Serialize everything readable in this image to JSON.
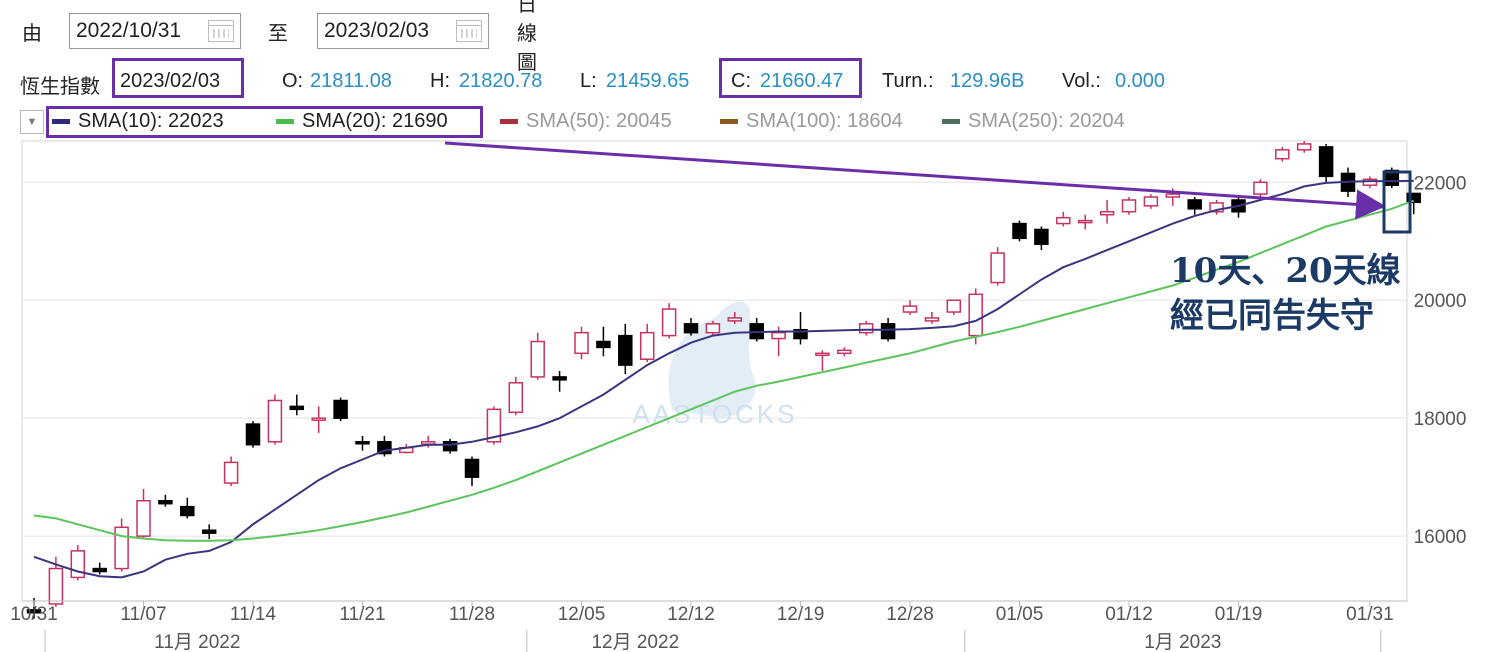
{
  "controls": {
    "from_label": "由",
    "from_date": "2022/10/31",
    "to_label": "至",
    "to_date": "2023/02/03",
    "chart_type": "日線圖"
  },
  "quote": {
    "index_name": "恆生指數",
    "date": "2023/02/03",
    "open_label": "O:",
    "open": "21811.08",
    "high_label": "H:",
    "high": "21820.78",
    "low_label": "L:",
    "low": "21459.65",
    "close_label": "C:",
    "close": "21660.47",
    "turnover_label": "Turn.:",
    "turnover": "129.96B",
    "volume_label": "Vol.:",
    "volume": "0.000"
  },
  "legend": [
    {
      "label": "SMA(10): 22023",
      "color": "#2e2a7a",
      "active": true
    },
    {
      "label": "SMA(20): 21690",
      "color": "#4cbb4c",
      "active": true
    },
    {
      "label": "SMA(50): 20045",
      "color": "#a8323c",
      "active": false
    },
    {
      "label": "SMA(100): 18604",
      "color": "#8a5a1c",
      "active": false
    },
    {
      "label": "SMA(250): 20204",
      "color": "#4a6f5c",
      "active": false
    }
  ],
  "watermark": "AASTOCKS",
  "annotation": {
    "line1": "10天、20天線",
    "line2": "經已同告失守"
  },
  "colors": {
    "up": "#c8325f",
    "down": "#000000",
    "sma10": "#3b3580",
    "sma20": "#5cc45c",
    "arrow": "#6a2ea8"
  },
  "chart_data": {
    "type": "candlestick",
    "ylim": [
      14900,
      22700
    ],
    "yticks": [
      16000,
      18000,
      20000,
      22000
    ],
    "ytick_labels": [
      "16000",
      "18000",
      "20000",
      "22000"
    ],
    "xtick_labels": [
      "10/31",
      "11/07",
      "11/14",
      "11/21",
      "11/28",
      "12/05",
      "12/12",
      "12/19",
      "12/28",
      "01/05",
      "01/12",
      "01/19",
      "01/31"
    ],
    "xtick_index": [
      0,
      5,
      10,
      15,
      20,
      25,
      30,
      35,
      40,
      45,
      50,
      55,
      61
    ],
    "month_labels": [
      "11月 2022",
      "12月 2022",
      "1月 2023"
    ],
    "month_label_center": [
      7,
      27,
      52
    ],
    "month_boundaries": [
      1,
      23,
      43,
      62
    ],
    "candles": [
      {
        "o": 14750,
        "h": 14950,
        "l": 14600,
        "c": 14700
      },
      {
        "o": 14850,
        "h": 15650,
        "l": 14800,
        "c": 15450
      },
      {
        "o": 15300,
        "h": 15850,
        "l": 15250,
        "c": 15750
      },
      {
        "o": 15450,
        "h": 15550,
        "l": 15350,
        "c": 15400
      },
      {
        "o": 15450,
        "h": 16300,
        "l": 15400,
        "c": 16150
      },
      {
        "o": 16000,
        "h": 16800,
        "l": 15950,
        "c": 16600
      },
      {
        "o": 16600,
        "h": 16700,
        "l": 16500,
        "c": 16550
      },
      {
        "o": 16500,
        "h": 16650,
        "l": 16300,
        "c": 16350
      },
      {
        "o": 16100,
        "h": 16200,
        "l": 15950,
        "c": 16050
      },
      {
        "o": 16900,
        "h": 17350,
        "l": 16850,
        "c": 17250
      },
      {
        "o": 17900,
        "h": 17950,
        "l": 17500,
        "c": 17550
      },
      {
        "o": 17600,
        "h": 18400,
        "l": 17550,
        "c": 18300
      },
      {
        "o": 18200,
        "h": 18400,
        "l": 18050,
        "c": 18150
      },
      {
        "o": 18000,
        "h": 18200,
        "l": 17750,
        "c": 18000
      },
      {
        "o": 18300,
        "h": 18350,
        "l": 17950,
        "c": 18000
      },
      {
        "o": 17600,
        "h": 17700,
        "l": 17450,
        "c": 17580
      },
      {
        "o": 17600,
        "h": 17700,
        "l": 17350,
        "c": 17400
      },
      {
        "o": 17420,
        "h": 17560,
        "l": 17400,
        "c": 17500
      },
      {
        "o": 17560,
        "h": 17700,
        "l": 17500,
        "c": 17600
      },
      {
        "o": 17600,
        "h": 17650,
        "l": 17400,
        "c": 17450
      },
      {
        "o": 17300,
        "h": 17350,
        "l": 16850,
        "c": 17000
      },
      {
        "o": 17600,
        "h": 18200,
        "l": 17550,
        "c": 18150
      },
      {
        "o": 18100,
        "h": 18700,
        "l": 18050,
        "c": 18600
      },
      {
        "o": 18700,
        "h": 19450,
        "l": 18650,
        "c": 19300
      },
      {
        "o": 18700,
        "h": 18800,
        "l": 18450,
        "c": 18650
      },
      {
        "o": 19100,
        "h": 19550,
        "l": 19000,
        "c": 19450
      },
      {
        "o": 19300,
        "h": 19550,
        "l": 19050,
        "c": 19200
      },
      {
        "o": 19400,
        "h": 19600,
        "l": 18750,
        "c": 18900
      },
      {
        "o": 19000,
        "h": 19600,
        "l": 18950,
        "c": 19450
      },
      {
        "o": 19400,
        "h": 19950,
        "l": 19350,
        "c": 19850
      },
      {
        "o": 19600,
        "h": 19700,
        "l": 19400,
        "c": 19450
      },
      {
        "o": 19450,
        "h": 19650,
        "l": 19400,
        "c": 19600
      },
      {
        "o": 19650,
        "h": 19800,
        "l": 19600,
        "c": 19700
      },
      {
        "o": 19600,
        "h": 19700,
        "l": 19300,
        "c": 19350
      },
      {
        "o": 19350,
        "h": 19550,
        "l": 19050,
        "c": 19450
      },
      {
        "o": 19500,
        "h": 19800,
        "l": 19250,
        "c": 19350
      },
      {
        "o": 19100,
        "h": 19150,
        "l": 18800,
        "c": 19100
      },
      {
        "o": 19100,
        "h": 19200,
        "l": 19050,
        "c": 19150
      },
      {
        "o": 19450,
        "h": 19650,
        "l": 19400,
        "c": 19600
      },
      {
        "o": 19600,
        "h": 19700,
        "l": 19300,
        "c": 19350
      },
      {
        "o": 19800,
        "h": 20000,
        "l": 19750,
        "c": 19900
      },
      {
        "o": 19650,
        "h": 19800,
        "l": 19600,
        "c": 19700
      },
      {
        "o": 19800,
        "h": 20000,
        "l": 19750,
        "c": 20000
      },
      {
        "o": 19400,
        "h": 20200,
        "l": 19250,
        "c": 20100
      },
      {
        "o": 20300,
        "h": 20900,
        "l": 20250,
        "c": 20800
      },
      {
        "o": 21300,
        "h": 21350,
        "l": 21000,
        "c": 21050
      },
      {
        "o": 21200,
        "h": 21250,
        "l": 20850,
        "c": 20950
      },
      {
        "o": 21300,
        "h": 21500,
        "l": 21250,
        "c": 21400
      },
      {
        "o": 21350,
        "h": 21450,
        "l": 21200,
        "c": 21350
      },
      {
        "o": 21450,
        "h": 21700,
        "l": 21300,
        "c": 21500
      },
      {
        "o": 21500,
        "h": 21750,
        "l": 21450,
        "c": 21700
      },
      {
        "o": 21600,
        "h": 21800,
        "l": 21550,
        "c": 21750
      },
      {
        "o": 21750,
        "h": 21900,
        "l": 21600,
        "c": 21800
      },
      {
        "o": 21700,
        "h": 21750,
        "l": 21450,
        "c": 21550
      },
      {
        "o": 21500,
        "h": 21700,
        "l": 21450,
        "c": 21650
      },
      {
        "o": 21700,
        "h": 21750,
        "l": 21400,
        "c": 21500
      },
      {
        "o": 21800,
        "h": 22050,
        "l": 21750,
        "c": 22000
      },
      {
        "o": 22400,
        "h": 22600,
        "l": 22350,
        "c": 22550
      },
      {
        "o": 22550,
        "h": 22700,
        "l": 22500,
        "c": 22650
      },
      {
        "o": 22600,
        "h": 22650,
        "l": 22000,
        "c": 22100
      },
      {
        "o": 22150,
        "h": 22250,
        "l": 21750,
        "c": 21850
      },
      {
        "o": 21950,
        "h": 22100,
        "l": 21900,
        "c": 22050
      },
      {
        "o": 22200,
        "h": 22250,
        "l": 21900,
        "c": 21950
      },
      {
        "o": 21811,
        "h": 21820,
        "l": 21459,
        "c": 21660
      }
    ],
    "series": [
      {
        "name": "SMA(10)",
        "values": [
          15650,
          15520,
          15400,
          15320,
          15300,
          15400,
          15600,
          15700,
          15750,
          15900,
          16200,
          16450,
          16700,
          16950,
          17150,
          17300,
          17450,
          17500,
          17550,
          17550,
          17600,
          17680,
          17760,
          17860,
          18000,
          18200,
          18400,
          18650,
          18900,
          19100,
          19280,
          19400,
          19450,
          19460,
          19470,
          19470,
          19480,
          19490,
          19500,
          19500,
          19510,
          19530,
          19560,
          19650,
          19850,
          20100,
          20350,
          20560,
          20700,
          20850,
          21000,
          21150,
          21300,
          21430,
          21530,
          21600,
          21700,
          21800,
          21930,
          21990,
          22010,
          22020,
          22020,
          22023
        ]
      },
      {
        "name": "SMA(20)",
        "values": [
          16350,
          16300,
          16200,
          16100,
          16000,
          15960,
          15930,
          15920,
          15920,
          15930,
          15960,
          16000,
          16050,
          16100,
          16170,
          16240,
          16320,
          16400,
          16500,
          16600,
          16700,
          16820,
          16950,
          17100,
          17250,
          17400,
          17550,
          17700,
          17850,
          18000,
          18150,
          18300,
          18450,
          18550,
          18620,
          18700,
          18780,
          18860,
          18940,
          19020,
          19100,
          19200,
          19300,
          19380,
          19460,
          19550,
          19650,
          19750,
          19850,
          19950,
          20050,
          20150,
          20250,
          20380,
          20520,
          20650,
          20800,
          20950,
          21100,
          21250,
          21350,
          21450,
          21550,
          21690
        ]
      }
    ]
  }
}
